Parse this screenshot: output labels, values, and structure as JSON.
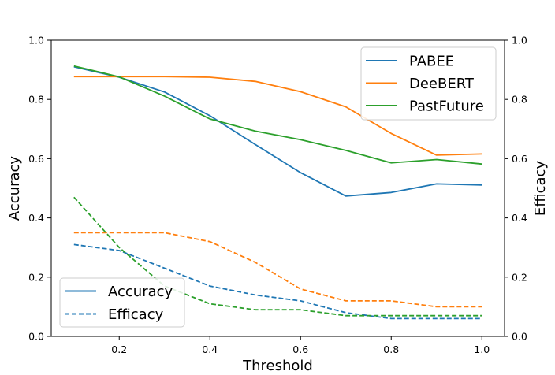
{
  "chart_data": {
    "type": "line",
    "xlabel": "Threshold",
    "ylabel": "Accuracy",
    "ylabel_right": "Efficacy",
    "xlim": [
      0.05,
      1.05
    ],
    "ylim": [
      0.0,
      1.0
    ],
    "ylim_right": [
      0.0,
      1.0
    ],
    "x_ticks": [
      0.2,
      0.4,
      0.6,
      0.8,
      1.0
    ],
    "x_tick_labels": [
      "0.2",
      "0.4",
      "0.6",
      "0.8",
      "1.0"
    ],
    "y_ticks": [
      0.0,
      0.2,
      0.4,
      0.6,
      0.8,
      1.0
    ],
    "y_tick_labels": [
      "0.0",
      "0.2",
      "0.4",
      "0.6",
      "0.8",
      "1.0"
    ],
    "x": [
      0.1,
      0.2,
      0.3,
      0.4,
      0.5,
      0.6,
      0.7,
      0.8,
      0.9,
      1.0
    ],
    "series": [
      {
        "name": "PABEE",
        "metric": "Accuracy",
        "axis": "left",
        "style": "solid",
        "color": "#1f77b4",
        "values": [
          0.91,
          0.875,
          0.825,
          0.745,
          0.648,
          0.553,
          0.474,
          0.486,
          0.515,
          0.511
        ]
      },
      {
        "name": "DeeBERT",
        "metric": "Accuracy",
        "axis": "left",
        "style": "solid",
        "color": "#ff7f0e",
        "values": [
          0.877,
          0.877,
          0.877,
          0.875,
          0.861,
          0.826,
          0.775,
          0.685,
          0.612,
          0.616
        ]
      },
      {
        "name": "PastFuture",
        "metric": "Accuracy",
        "axis": "left",
        "style": "solid",
        "color": "#2ca02c",
        "values": [
          0.913,
          0.876,
          0.811,
          0.734,
          0.693,
          0.664,
          0.628,
          0.586,
          0.597,
          0.582
        ]
      },
      {
        "name": "PABEE",
        "metric": "Efficacy",
        "axis": "right",
        "style": "dashed",
        "color": "#1f77b4",
        "values": [
          0.31,
          0.29,
          0.23,
          0.17,
          0.14,
          0.12,
          0.08,
          0.06,
          0.06,
          0.06
        ]
      },
      {
        "name": "DeeBERT",
        "metric": "Efficacy",
        "axis": "right",
        "style": "dashed",
        "color": "#ff7f0e",
        "values": [
          0.35,
          0.35,
          0.35,
          0.32,
          0.25,
          0.16,
          0.12,
          0.12,
          0.1,
          0.1
        ]
      },
      {
        "name": "PastFuture",
        "metric": "Efficacy",
        "axis": "right",
        "style": "dashed",
        "color": "#2ca02c",
        "values": [
          0.47,
          0.3,
          0.17,
          0.11,
          0.09,
          0.09,
          0.07,
          0.07,
          0.07,
          0.07
        ]
      }
    ],
    "legend_models": {
      "placement": "top-right",
      "entries": [
        {
          "label": "PABEE",
          "color": "#1f77b4",
          "style": "solid"
        },
        {
          "label": "DeeBERT",
          "color": "#ff7f0e",
          "style": "solid"
        },
        {
          "label": "PastFuture",
          "color": "#2ca02c",
          "style": "solid"
        }
      ]
    },
    "legend_metrics": {
      "placement": "bottom-left",
      "entries": [
        {
          "label": "Accuracy",
          "color": "#1f77b4",
          "style": "solid"
        },
        {
          "label": "Efficacy",
          "color": "#1f77b4",
          "style": "dashed"
        }
      ]
    }
  }
}
